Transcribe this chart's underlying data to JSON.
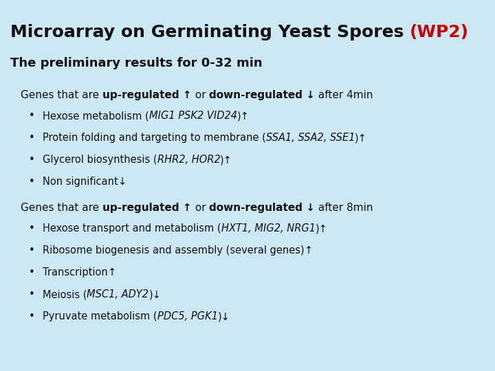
{
  "title_black": "Microarray on Germinating Yeast Spores ",
  "title_red": "(WP2)",
  "subtitle": "The preliminary results for 0-32 min",
  "section1_bullets_plain": [
    "Hexose metabolism (",
    "Protein folding and targeting to membrane (",
    "Glycerol biosynthesis (",
    "Non significant"
  ],
  "section1_bullets_italic": [
    "MIG1 PSK2 VID24",
    "SSA1, SSA2, SSE1",
    "RHR2, HOR2",
    ""
  ],
  "section1_bullets_end": [
    ")↑",
    ")↑",
    ")↑",
    "↓"
  ],
  "section2_bullets_plain": [
    "Hexose transport and metabolism (",
    "Ribosome biogenesis and assembly (several genes)",
    "Transcription",
    "Meiosis (",
    "Pyruvate metabolism ("
  ],
  "section2_bullets_italic": [
    "HXT1, MIG2, NRG1",
    "",
    "",
    "MSC1, ADY2",
    "PDC5, PGK1"
  ],
  "section2_bullets_end": [
    ")↑",
    "↑",
    "↑",
    ")↓",
    ")↓"
  ],
  "bg_color": "#cce8f5",
  "title_color": "#111111",
  "wp2_color": "#cc0000",
  "text_color": "#111111",
  "title_fontsize": 18,
  "subtitle_fontsize": 13,
  "section_fontsize": 11,
  "bullet_fontsize": 10.5
}
